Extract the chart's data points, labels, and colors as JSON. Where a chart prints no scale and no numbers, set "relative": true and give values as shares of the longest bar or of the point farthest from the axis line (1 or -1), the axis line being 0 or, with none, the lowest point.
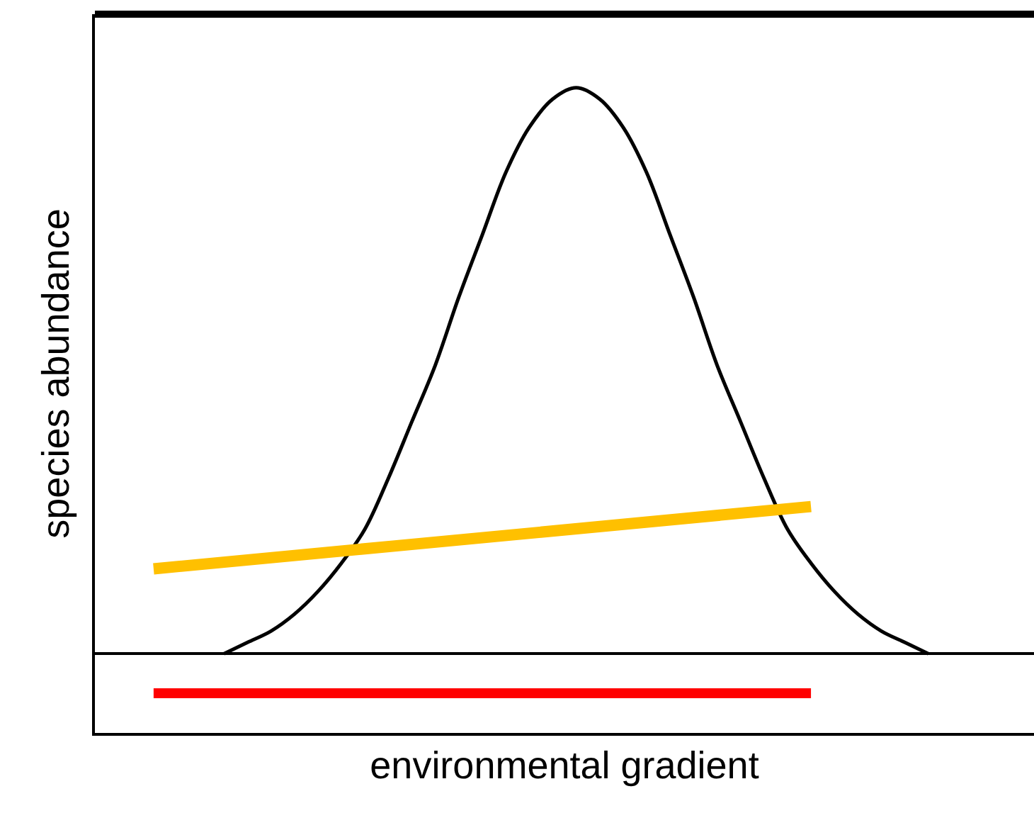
{
  "chart_data": {
    "type": "line",
    "relative": true,
    "xlabel": "environmental gradient",
    "ylabel": "species abundance",
    "tick_labels": false,
    "marker": "none",
    "line_style": "solid",
    "categories": [
      null,
      null,
      null,
      null,
      null,
      null,
      null,
      null,
      null,
      null,
      null,
      null,
      null,
      null,
      null,
      null,
      null,
      null,
      null,
      null,
      null,
      null,
      null,
      null,
      null,
      null,
      null,
      null,
      null,
      null,
      null,
      null,
      null,
      null,
      null,
      null,
      null,
      null,
      null,
      null
    ],
    "series": [
      {
        "color": "#000000",
        "values": [
          null,
          null,
          null,
          null,
          null,
          0.0,
          0.02,
          0.04,
          0.07,
          0.11,
          0.16,
          0.22,
          0.31,
          0.41,
          0.51,
          0.63,
          0.74,
          0.85,
          0.93,
          0.98,
          1.0,
          0.98,
          0.93,
          0.85,
          0.74,
          0.63,
          0.51,
          0.41,
          0.31,
          0.22,
          0.16,
          0.11,
          0.07,
          0.04,
          0.02,
          0.0,
          null,
          null,
          null,
          null
        ]
      },
      {
        "color": "#ffc000",
        "values": [
          null,
          null,
          0.15,
          null,
          null,
          null,
          null,
          null,
          null,
          null,
          null,
          null,
          null,
          null,
          null,
          null,
          null,
          null,
          null,
          null,
          null,
          null,
          null,
          null,
          null,
          null,
          null,
          null,
          null,
          null,
          0.26,
          null,
          null,
          null,
          null,
          null,
          null,
          null,
          null,
          null
        ]
      },
      {
        "color": "#ff0000",
        "values": [
          null,
          null,
          -0.07,
          null,
          null,
          null,
          null,
          null,
          null,
          null,
          null,
          null,
          null,
          null,
          null,
          null,
          null,
          null,
          null,
          null,
          null,
          null,
          null,
          null,
          null,
          null,
          null,
          null,
          null,
          null,
          -0.07,
          null,
          null,
          null,
          null,
          null,
          null,
          null,
          null,
          null
        ]
      }
    ]
  }
}
